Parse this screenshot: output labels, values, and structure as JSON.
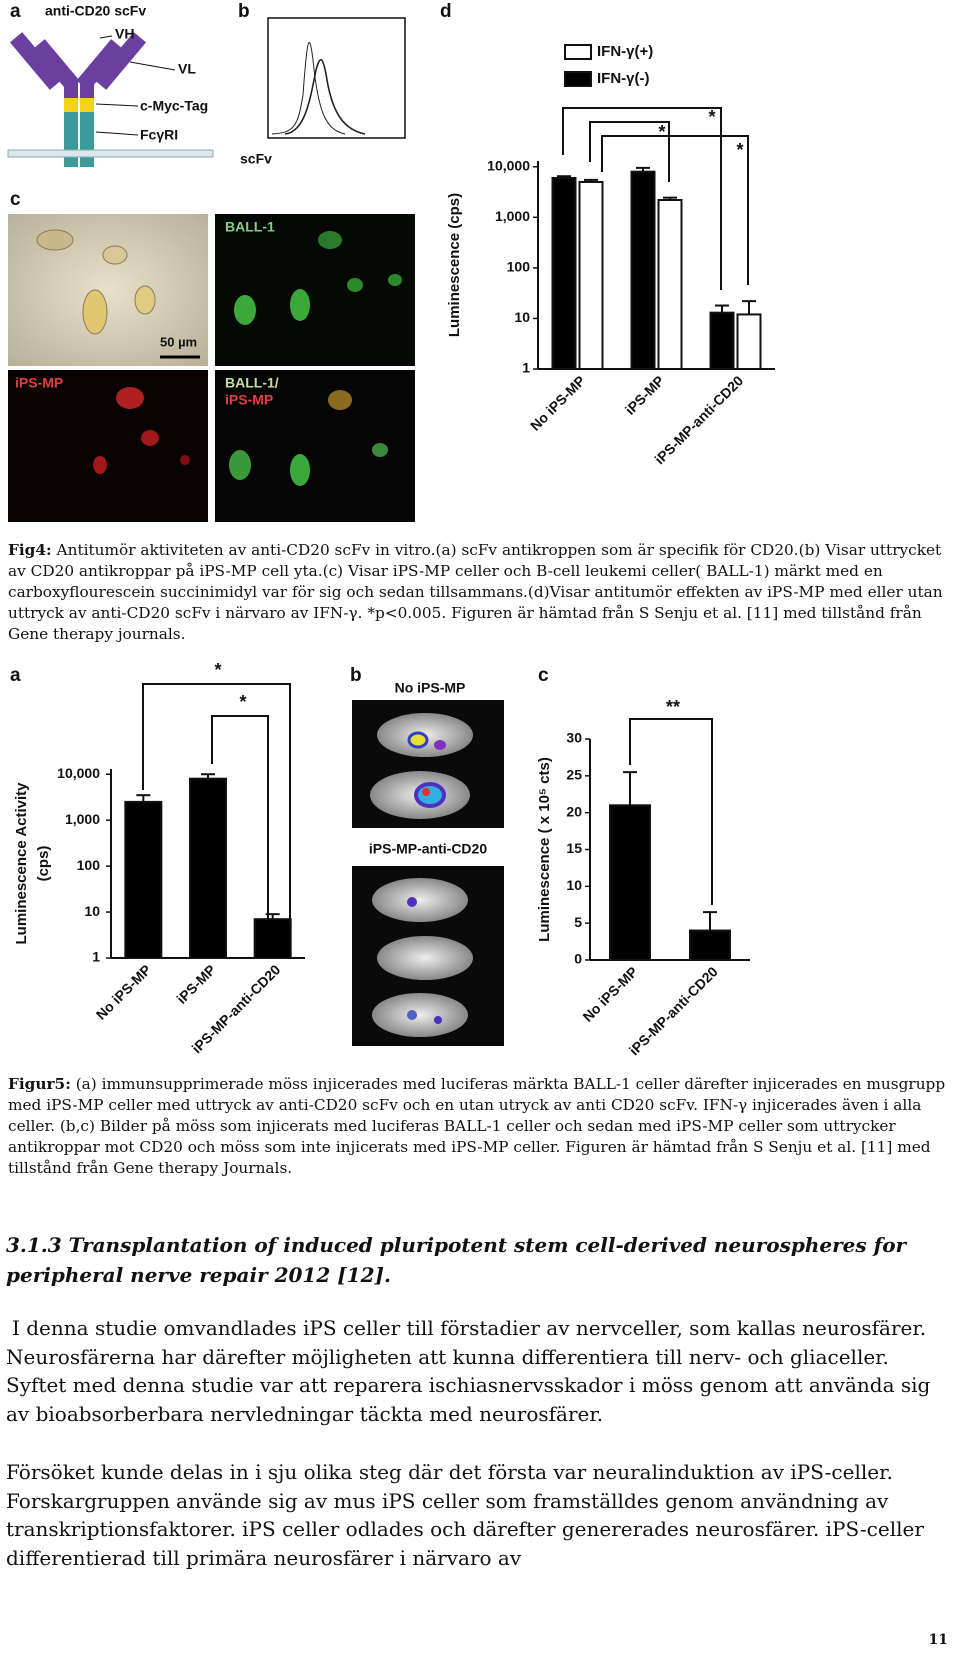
{
  "fig4": {
    "panel_labels": [
      "a",
      "b",
      "c",
      "d"
    ],
    "a_title": "anti-CD20 scFv",
    "a_labels": [
      "VH",
      "VL",
      "c-Myc-Tag",
      "FcγRI"
    ],
    "b_label": "scFv",
    "c_labels": [
      "50 µm",
      "BALL-1",
      "iPS-MP",
      "BALL-1/",
      "iPS-MP"
    ],
    "caption": {
      "label": "Fig4:",
      "text": "Antitumör aktiviteten av anti-CD20 scFv in vitro.(a) scFv antikroppen som är specifik för CD20.(b) Visar uttrycket av CD20 antikroppar på iPS-MP cell yta.(c) Visar iPS-MP celler och B-cell leukemi celler( BALL-1) märkt med en carboxyflourescein succinimidyl var för sig och sedan tillsammans.(d)Visar antitumör effekten av iPS-MP med eller utan uttryck av anti-CD20 scFv i närvaro av IFN-γ. *p<0.005. Figuren är hämtad från S Senju et al. [11] med tillstånd från Gene therapy journals."
    }
  },
  "fig5": {
    "panel_labels": [
      "a",
      "b",
      "c"
    ],
    "b_labels": [
      "No iPS-MP",
      "iPS-MP-anti-CD20"
    ],
    "caption": {
      "label": "Figur5:",
      "text": "(a) immunsupprimerade möss injicerades med luciferas märkta BALL-1 celler därefter injicerades en musgrupp med iPS-MP celler med uttryck av anti-CD20 scFv och en utan utryck av anti CD20 scFv. IFN-γ injicerades även i alla celler. (b,c) Bilder på möss som injicerats med luciferas BALL-1 celler och sedan med iPS-MP celler som uttrycker antikroppar mot CD20 och möss som inte injicerats med iPS-MP celler. Figuren är hämtad från S Senju et al. [11] med tillstånd från Gene therapy Journals."
    }
  },
  "chart_data": [
    {
      "type": "bar",
      "log_scale": true,
      "y_label": [
        "Luminescence (cps)"
      ],
      "categories": [
        "No iPS-MP",
        "iPS-MP",
        "iPS-MP-anti-CD20"
      ],
      "series": [
        {
          "name": "IFN-γ(+)",
          "color": "#ffffff",
          "values": [
            5000,
            2200,
            12
          ],
          "errors": [
            500,
            250,
            10
          ]
        },
        {
          "name": "IFN-γ(-)",
          "color": "#000000",
          "values": [
            6000,
            8000,
            13
          ],
          "errors": [
            500,
            1500,
            5
          ]
        }
      ],
      "ylim": [
        1,
        13000
      ],
      "yticks": [
        1,
        10,
        100,
        {
          "value": 1000,
          "label": "1,000"
        },
        {
          "value": 10000,
          "label": "10,000"
        }
      ],
      "annotations": [
        "*",
        "*",
        "*"
      ]
    },
    {
      "type": "bar",
      "log_scale": true,
      "y_label": [
        "Luminescence Activity",
        "(cps)"
      ],
      "categories": [
        "No iPS-MP",
        "iPS-MP",
        "iPS-MP-anti-CD20"
      ],
      "series": [
        {
          "color": "#000000",
          "values": [
            2500,
            8000,
            7
          ],
          "errors": [
            1000,
            2000,
            2
          ]
        }
      ],
      "ylim": [
        1,
        13000
      ],
      "yticks": [
        1,
        10,
        100,
        {
          "value": 1000,
          "label": "1,000"
        },
        {
          "value": 10000,
          "label": "10,000"
        }
      ],
      "annotations": [
        "*",
        "*"
      ]
    },
    {
      "type": "bar",
      "log_scale": false,
      "y_label": [
        "Luminescence ( x 10⁵ cts)"
      ],
      "categories": [
        "No iPS-MP",
        "iPS-MP-anti-CD20"
      ],
      "series": [
        {
          "color": "#000000",
          "values": [
            21,
            4
          ],
          "errors": [
            4.5,
            2.5
          ]
        }
      ],
      "ylim": [
        0,
        30
      ],
      "yticks": [
        0,
        5,
        10,
        15,
        20,
        25,
        30
      ],
      "annotations": [
        "**"
      ]
    }
  ],
  "section": {
    "heading": "3.1.3 Transplantation of induced pluripotent stem cell-derived neurospheres for peripheral nerve repair 2012 [12].",
    "paragraphs": [
      "I denna studie omvandlades iPS celler till förstadier av nervceller, som kallas neurosfärer. Neurosfärerna har därefter möjligheten att kunna differentiera till nerv- och gliaceller. Syftet med denna studie var att reparera ischiasnervsskador i möss genom att använda sig av bioabsorberbara nervledningar täckta med neurosfärer.",
      "Försöket kunde delas in i sju olika steg där det första var neuralinduktion av iPS-celler. Forskargruppen använde sig av mus iPS celler som framställdes genom användning av transkriptionsfaktorer. iPS celler odlades och därefter genererades neurosfärer. iPS-celler differentierad till primära neurosfärer i närvaro av"
    ]
  },
  "page_number": "11"
}
